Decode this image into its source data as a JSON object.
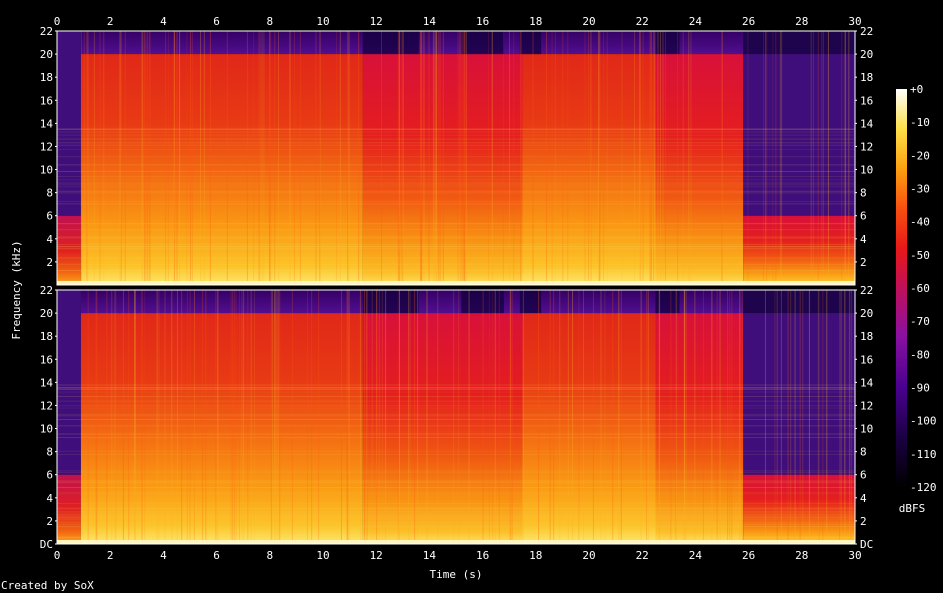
{
  "chart_data": {
    "type": "heatmap",
    "title": "",
    "xlabel": "Time (s)",
    "ylabel": "Frequency (kHz)",
    "xlim": [
      0,
      30
    ],
    "ylim": [
      0,
      22
    ],
    "x_ticks": [
      "0",
      "2",
      "4",
      "6",
      "8",
      "10",
      "12",
      "14",
      "16",
      "18",
      "20",
      "22",
      "24",
      "26",
      "28",
      "30"
    ],
    "y_ticks": [
      "2",
      "4",
      "6",
      "8",
      "10",
      "12",
      "14",
      "16",
      "18",
      "20",
      "22"
    ],
    "y_ticks_bottom": [
      "DC",
      "2",
      "4",
      "6",
      "8",
      "10",
      "12",
      "14",
      "16",
      "18",
      "20",
      "22"
    ],
    "channels": 2,
    "colorbar": {
      "label": "dBFS",
      "min": -120,
      "max": 0,
      "ticks": [
        "+0",
        "-10",
        "-20",
        "-30",
        "-40",
        "-50",
        "-60",
        "-70",
        "-80",
        "-90",
        "-100",
        "-110",
        "-120"
      ],
      "colors": [
        "#000000",
        "#1a0040",
        "#4a0090",
        "#8a10a0",
        "#c0105a",
        "#e81818",
        "#f85010",
        "#fca010",
        "#fde048",
        "#ffffff"
      ]
    },
    "segments": [
      {
        "t0": 0.0,
        "t1": 0.9,
        "cutoff_khz": 6,
        "level": "low"
      },
      {
        "t0": 0.9,
        "t1": 11.5,
        "cutoff_khz": 20,
        "level": "high"
      },
      {
        "t0": 11.5,
        "t1": 17.5,
        "cutoff_khz": 20,
        "level": "mid"
      },
      {
        "t0": 17.5,
        "t1": 22.5,
        "cutoff_khz": 20,
        "level": "high"
      },
      {
        "t0": 22.5,
        "t1": 25.8,
        "cutoff_khz": 20,
        "level": "mid"
      },
      {
        "t0": 25.8,
        "t1": 30.0,
        "cutoff_khz": 6,
        "level": "mid"
      }
    ]
  },
  "footer": {
    "credit": "Created by SoX"
  }
}
